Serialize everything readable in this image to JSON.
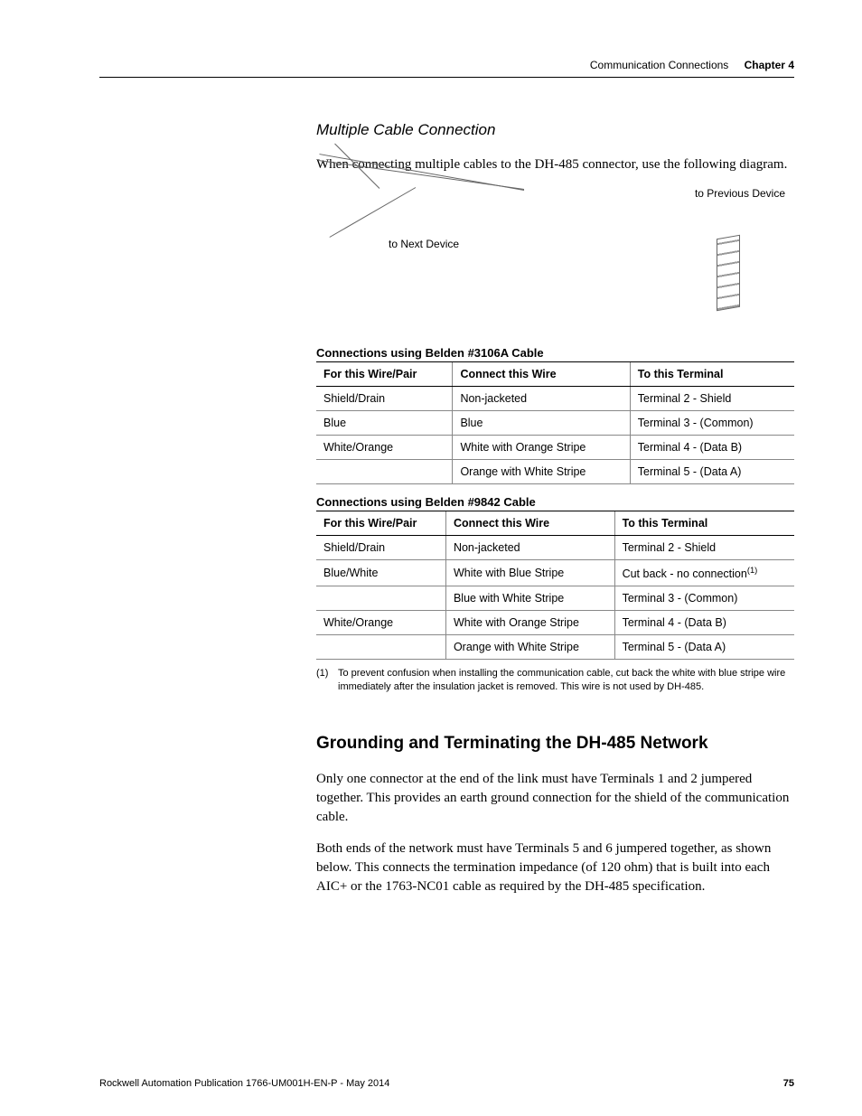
{
  "header": {
    "section_title": "Communication Connections",
    "chapter_label": "Chapter 4"
  },
  "subheading": "Multiple Cable Connection",
  "intro_para": "When connecting multiple cables to the DH-485 connector, use the following diagram.",
  "diagram": {
    "label_prev": "to Previous Device",
    "label_next": "to Next Device"
  },
  "table1": {
    "title": "Connections using Belden #3106A Cable",
    "headers": [
      "For this Wire/Pair",
      "Connect this Wire",
      "To this Terminal"
    ],
    "rows": [
      [
        "Shield/Drain",
        "Non-jacketed",
        "Terminal 2 - Shield"
      ],
      [
        "Blue",
        "Blue",
        "Terminal 3 - (Common)"
      ],
      [
        "White/Orange",
        "White with Orange Stripe",
        "Terminal 4 - (Data B)"
      ],
      [
        "",
        "Orange with White Stripe",
        "Terminal 5 - (Data A)"
      ]
    ]
  },
  "table2": {
    "title": "Connections using Belden #9842 Cable",
    "headers": [
      "For this Wire/Pair",
      "Connect this Wire",
      "To this Terminal"
    ],
    "rows": [
      [
        "Shield/Drain",
        "Non-jacketed",
        "Terminal 2 - Shield"
      ],
      [
        "Blue/White",
        "White with Blue Stripe",
        "Cut back - no connection"
      ],
      [
        "",
        "Blue with White Stripe",
        "Terminal 3 - (Common)"
      ],
      [
        "White/Orange",
        "White with Orange Stripe",
        "Terminal 4 - (Data B)"
      ],
      [
        "",
        "Orange with White Stripe",
        "Terminal 5 - (Data A)"
      ]
    ],
    "footnote_marker_row": 1,
    "footnote_mark": "(1)",
    "footnote_text": "To prevent confusion when installing the communication cable, cut back the white with blue stripe wire immediately after the insulation jacket is removed. This wire is not used by DH-485."
  },
  "section": {
    "heading": "Grounding and Terminating the DH-485 Network",
    "para1": "Only one connector at the end of the link must have Terminals 1 and 2 jumpered together. This provides an earth ground connection for the shield of the communication cable.",
    "para2": "Both ends of the network must have Terminals 5 and 6 jumpered together, as shown below. This connects the termination impedance (of 120 ohm) that is built into each AIC+ or the 1763-NC01 cable as required by the DH-485 specification."
  },
  "footer": {
    "pub": "Rockwell Automation Publication 1766-UM001H-EN-P - May 2014",
    "page": "75"
  },
  "colors": {
    "text": "#000000",
    "rule": "#000000",
    "cell_border": "#888888"
  }
}
